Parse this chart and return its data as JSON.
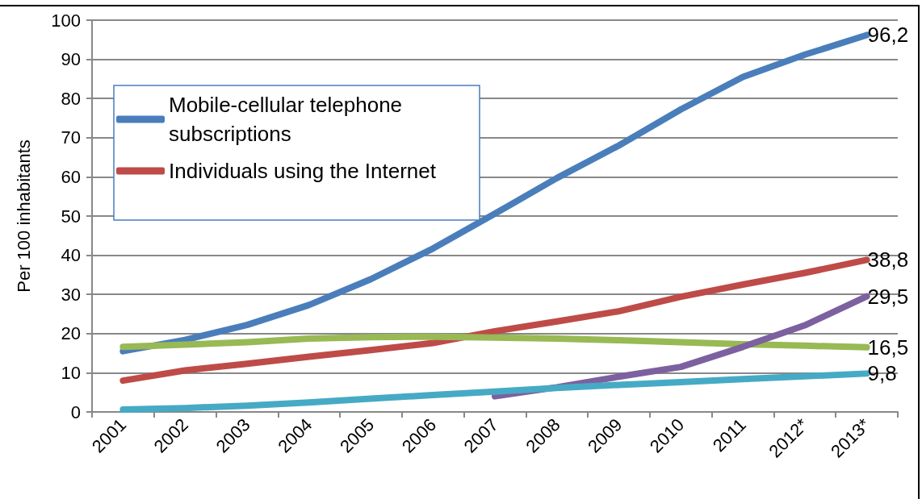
{
  "chart_data": {
    "type": "line",
    "ylabel": "Per 100 inhabitants",
    "categories": [
      "2001",
      "2002",
      "2003",
      "2004",
      "2005",
      "2006",
      "2007",
      "2008",
      "2009",
      "2010",
      "2011",
      "2012*",
      "2013*"
    ],
    "series": [
      {
        "name": "Mobile-cellular telephone subscriptions",
        "color": "#4a7ebb",
        "values": [
          15.5,
          18.4,
          22.2,
          27.3,
          33.9,
          41.7,
          50.6,
          59.7,
          68.0,
          77.2,
          85.5,
          91.2,
          96.2
        ],
        "value_labels": [
          null,
          null,
          null,
          null,
          null,
          null,
          null,
          null,
          null,
          null,
          null,
          null,
          "96,2"
        ]
      },
      {
        "name": "Individuals using the Internet",
        "color": "#be4b48",
        "values": [
          8.0,
          10.6,
          12.3,
          14.1,
          15.8,
          17.6,
          20.6,
          23.1,
          25.7,
          29.4,
          32.5,
          35.5,
          38.8
        ],
        "value_labels": [
          null,
          null,
          null,
          null,
          null,
          null,
          null,
          null,
          null,
          null,
          null,
          null,
          "38,8"
        ]
      },
      {
        "color": "#98b954",
        "values": [
          16.6,
          17.2,
          17.8,
          18.7,
          19.1,
          19.2,
          19.0,
          18.7,
          18.3,
          17.8,
          17.3,
          16.9,
          16.5
        ],
        "value_labels": [
          null,
          null,
          null,
          null,
          null,
          null,
          null,
          null,
          null,
          null,
          null,
          null,
          "16,5"
        ]
      },
      {
        "color": "#7d60a0",
        "values": [
          null,
          null,
          null,
          null,
          null,
          null,
          4.0,
          6.3,
          9.0,
          11.5,
          16.6,
          22.1,
          29.5
        ],
        "value_labels": [
          null,
          null,
          null,
          null,
          null,
          null,
          null,
          null,
          null,
          null,
          null,
          null,
          "29,5"
        ]
      },
      {
        "color": "#46aac5",
        "values": [
          0.6,
          1.0,
          1.6,
          2.4,
          3.4,
          4.3,
          5.2,
          6.1,
          6.9,
          7.6,
          8.4,
          9.1,
          9.8
        ],
        "value_labels": [
          null,
          null,
          null,
          null,
          null,
          null,
          null,
          null,
          null,
          null,
          null,
          null,
          "9,8"
        ]
      }
    ],
    "ylim": [
      0,
      100
    ],
    "yticks": [
      0,
      10,
      20,
      30,
      40,
      50,
      60,
      70,
      80,
      90,
      100
    ],
    "grid": "y",
    "legend": "top left",
    "marker": "none",
    "line_style": "solid"
  }
}
